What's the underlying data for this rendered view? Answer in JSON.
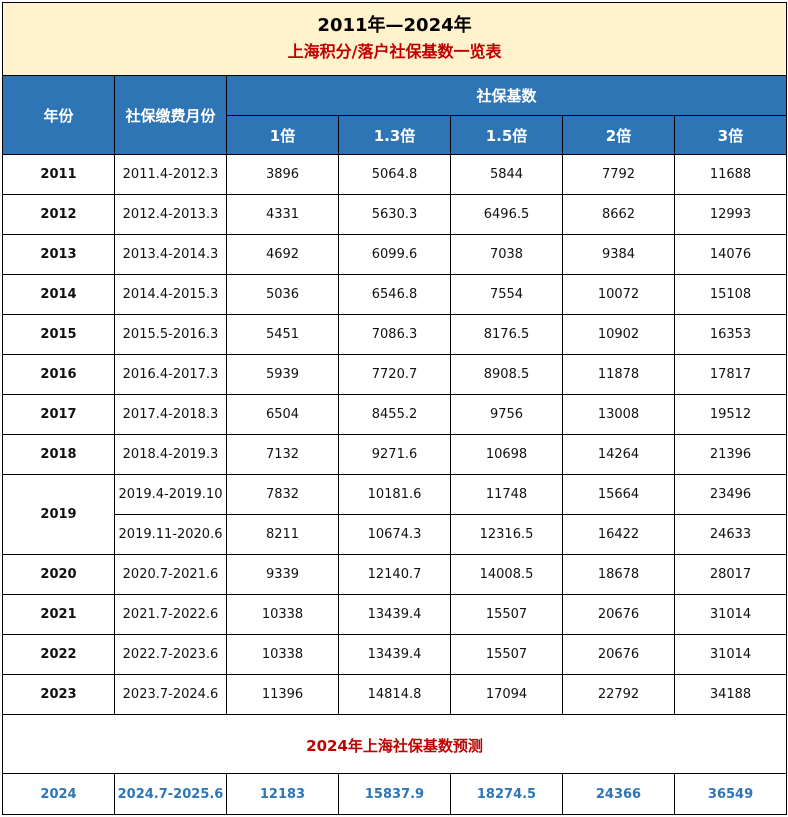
{
  "title": {
    "line1": "2011年—2024年",
    "line2": "上海积分/落户社保基数一览表"
  },
  "headers": {
    "year": "年份",
    "months": "社保缴费月份",
    "base_group": "社保基数",
    "multipliers": [
      "1倍",
      "1.3倍",
      "1.5倍",
      "2倍",
      "3倍"
    ]
  },
  "rows": [
    {
      "year": "2011",
      "periods": [
        {
          "months": "2011.4-2012.3",
          "values": [
            "3896",
            "5064.8",
            "5844",
            "7792",
            "11688"
          ]
        }
      ]
    },
    {
      "year": "2012",
      "periods": [
        {
          "months": "2012.4-2013.3",
          "values": [
            "4331",
            "5630.3",
            "6496.5",
            "8662",
            "12993"
          ]
        }
      ]
    },
    {
      "year": "2013",
      "periods": [
        {
          "months": "2013.4-2014.3",
          "values": [
            "4692",
            "6099.6",
            "7038",
            "9384",
            "14076"
          ]
        }
      ]
    },
    {
      "year": "2014",
      "periods": [
        {
          "months": "2014.4-2015.3",
          "values": [
            "5036",
            "6546.8",
            "7554",
            "10072",
            "15108"
          ]
        }
      ]
    },
    {
      "year": "2015",
      "periods": [
        {
          "months": "2015.5-2016.3",
          "values": [
            "5451",
            "7086.3",
            "8176.5",
            "10902",
            "16353"
          ]
        }
      ]
    },
    {
      "year": "2016",
      "periods": [
        {
          "months": "2016.4-2017.3",
          "values": [
            "5939",
            "7720.7",
            "8908.5",
            "11878",
            "17817"
          ]
        }
      ]
    },
    {
      "year": "2017",
      "periods": [
        {
          "months": "2017.4-2018.3",
          "values": [
            "6504",
            "8455.2",
            "9756",
            "13008",
            "19512"
          ]
        }
      ]
    },
    {
      "year": "2018",
      "periods": [
        {
          "months": "2018.4-2019.3",
          "values": [
            "7132",
            "9271.6",
            "10698",
            "14264",
            "21396"
          ]
        }
      ]
    },
    {
      "year": "2019",
      "periods": [
        {
          "months": "2019.4-2019.10",
          "values": [
            "7832",
            "10181.6",
            "11748",
            "15664",
            "23496"
          ]
        },
        {
          "months": "2019.11-2020.6",
          "values": [
            "8211",
            "10674.3",
            "12316.5",
            "16422",
            "24633"
          ]
        }
      ]
    },
    {
      "year": "2020",
      "periods": [
        {
          "months": "2020.7-2021.6",
          "values": [
            "9339",
            "12140.7",
            "14008.5",
            "18678",
            "28017"
          ]
        }
      ]
    },
    {
      "year": "2021",
      "periods": [
        {
          "months": "2021.7-2022.6",
          "values": [
            "10338",
            "13439.4",
            "15507",
            "20676",
            "31014"
          ]
        }
      ]
    },
    {
      "year": "2022",
      "periods": [
        {
          "months": "2022.7-2023.6",
          "values": [
            "10338",
            "13439.4",
            "15507",
            "20676",
            "31014"
          ]
        }
      ]
    },
    {
      "year": "2023",
      "periods": [
        {
          "months": "2023.7-2024.6",
          "values": [
            "11396",
            "14814.8",
            "17094",
            "22792",
            "34188"
          ]
        }
      ]
    }
  ],
  "prediction": {
    "title": "2024年上海社保基数预测",
    "year": "2024",
    "months": "2024.7-2025.6",
    "values": [
      "12183",
      "15837.9",
      "18274.5",
      "24366",
      "36549"
    ]
  },
  "colors": {
    "title_bg": "#fff2cc",
    "header_bg": "#2e75b6",
    "header_text": "#ffffff",
    "accent_red": "#c00000",
    "prediction_blue": "#2e75b6"
  }
}
